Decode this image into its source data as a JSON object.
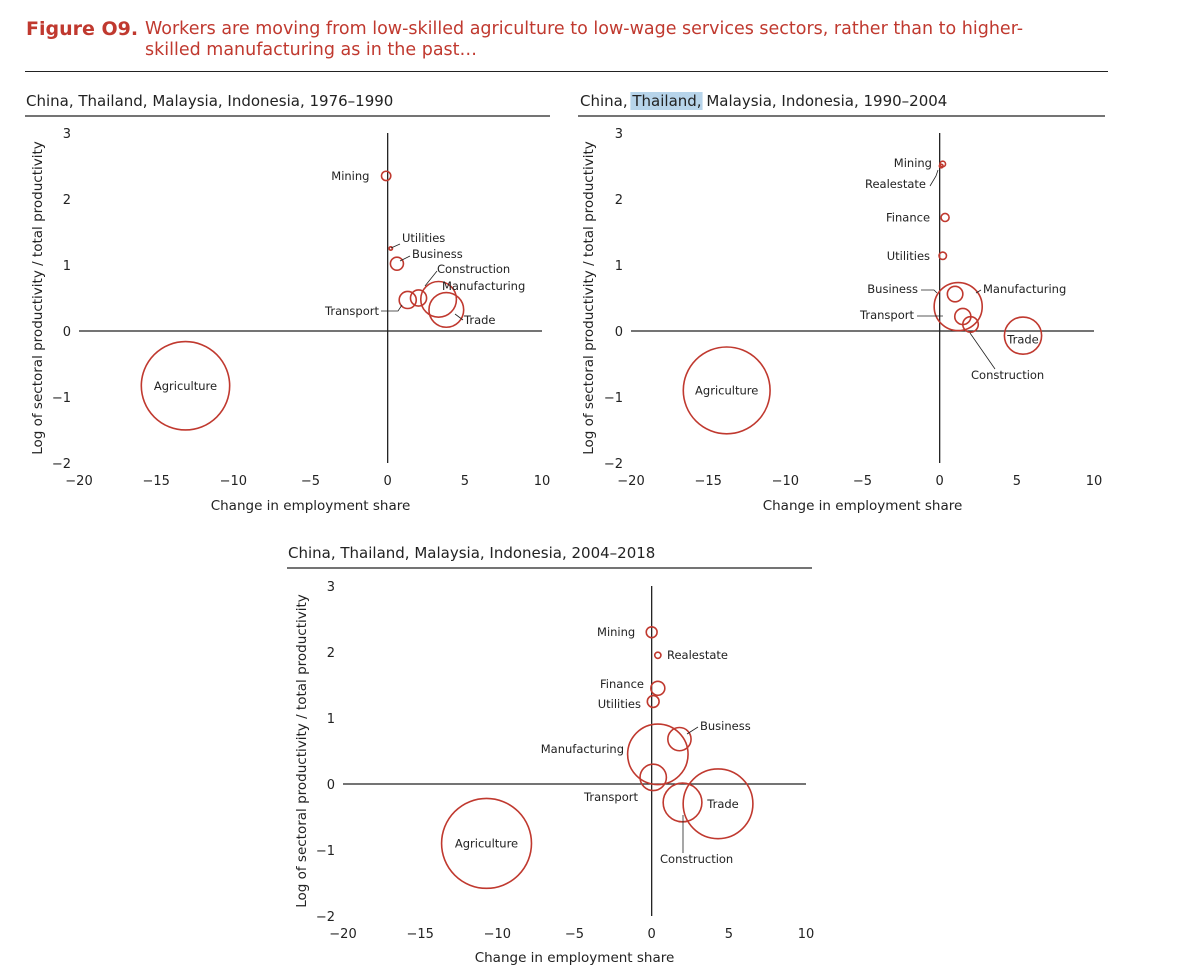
{
  "figure": {
    "number": "Figure O9.",
    "title": "Workers are moving from low-skilled agriculture to low-wage services sectors, rather than to higher-skilled manufacturing as in the past…"
  },
  "chart_data": [
    {
      "type": "scatter",
      "title": "China, Thailand, Malaysia, Indonesia, 1976–1990",
      "title_parts": [
        {
          "text": "China, ",
          "highlight": false
        },
        {
          "text": "Thailand, Malaysia, Indonesia, 1976–1990",
          "highlight": false
        }
      ],
      "xlabel": "Change in employment share",
      "ylabel": "Log of sectoral productivity / total productivity",
      "xlim": [
        -20,
        10
      ],
      "ylim": [
        -2,
        3
      ],
      "xticks": [
        "−20",
        "−15",
        "−10",
        "−5",
        "0",
        "5",
        "10"
      ],
      "yticks": [
        "3",
        "2",
        "1",
        "0",
        "−1",
        "−2"
      ],
      "points": [
        {
          "label": "Mining",
          "x": -0.1,
          "y": 2.35,
          "size": 0.3
        },
        {
          "label": "Utilities",
          "x": 0.2,
          "y": 1.25,
          "size": 0.11
        },
        {
          "label": "Business",
          "x": 0.6,
          "y": 1.02,
          "size": 0.42
        },
        {
          "label": "Construction",
          "x": 2.0,
          "y": 0.5,
          "size": 0.52
        },
        {
          "label": "Transport",
          "x": 1.3,
          "y": 0.47,
          "size": 0.55
        },
        {
          "label": "Manufacturing",
          "x": 3.3,
          "y": 0.48,
          "size": 1.15
        },
        {
          "label": "Trade",
          "x": 3.8,
          "y": 0.32,
          "size": 1.12
        },
        {
          "label": "Agriculture",
          "x": -13.1,
          "y": -0.83,
          "size": 2.85
        }
      ]
    },
    {
      "type": "scatter",
      "title": "China, Thailand, Malaysia, Indonesia, 1990–2004",
      "title_parts": [
        {
          "text": "China, ",
          "highlight": false
        },
        {
          "text": "Thailand,",
          "highlight": true
        },
        {
          "text": " Malaysia, Indonesia, 1990–2004",
          "highlight": false
        }
      ],
      "xlabel": "Change in employment share",
      "ylabel": "Log of sectoral productivity / total productivity",
      "xlim": [
        -20,
        10
      ],
      "ylim": [
        -2,
        3
      ],
      "xticks": [
        "−20",
        "−15",
        "−10",
        "−5",
        "0",
        "5",
        "10"
      ],
      "yticks": [
        "3",
        "2",
        "1",
        "0",
        "−1",
        "−2"
      ],
      "points": [
        {
          "label": "Mining",
          "x": 0.2,
          "y": 2.53,
          "size": 0.18
        },
        {
          "label": "Realestate",
          "x": 0.1,
          "y": 2.5,
          "size": 0.12
        },
        {
          "label": "Finance",
          "x": 0.35,
          "y": 1.72,
          "size": 0.26
        },
        {
          "label": "Utilities",
          "x": 0.2,
          "y": 1.14,
          "size": 0.24
        },
        {
          "label": "Business",
          "x": 1.0,
          "y": 0.56,
          "size": 0.5
        },
        {
          "label": "Manufacturing",
          "x": 1.2,
          "y": 0.37,
          "size": 1.55
        },
        {
          "label": "Transport",
          "x": 1.5,
          "y": 0.22,
          "size": 0.52
        },
        {
          "label": "Construction",
          "x": 2.0,
          "y": 0.1,
          "size": 0.5
        },
        {
          "label": "Trade",
          "x": 5.4,
          "y": -0.07,
          "size": 1.2
        },
        {
          "label": "Agriculture",
          "x": -13.8,
          "y": -0.9,
          "size": 2.8
        }
      ]
    },
    {
      "type": "scatter",
      "title": "China, Thailand, Malaysia, Indonesia, 2004–2018",
      "title_parts": [
        {
          "text": "China, ",
          "highlight": false
        },
        {
          "text": "Thailand, Malaysia, Indonesia, 2004–2018",
          "highlight": false
        }
      ],
      "xlabel": "Change in employment share",
      "ylabel": "Log of sectoral productivity / total productivity",
      "xlim": [
        -20,
        10
      ],
      "ylim": [
        -2,
        3
      ],
      "xticks": [
        "−20",
        "−15",
        "−10",
        "−5",
        "0",
        "5",
        "10"
      ],
      "yticks": [
        "3",
        "2",
        "1",
        "0",
        "−1",
        "−2"
      ],
      "points": [
        {
          "label": "Mining",
          "x": 0.0,
          "y": 2.3,
          "size": 0.35
        },
        {
          "label": "Realestate",
          "x": 0.4,
          "y": 1.95,
          "size": 0.2
        },
        {
          "label": "Finance",
          "x": 0.4,
          "y": 1.45,
          "size": 0.45
        },
        {
          "label": "Utilities",
          "x": 0.1,
          "y": 1.25,
          "size": 0.38
        },
        {
          "label": "Business",
          "x": 1.8,
          "y": 0.68,
          "size": 0.75
        },
        {
          "label": "Manufacturing",
          "x": 0.4,
          "y": 0.45,
          "size": 1.95
        },
        {
          "label": "Transport",
          "x": 0.1,
          "y": 0.1,
          "size": 0.85
        },
        {
          "label": "Construction",
          "x": 2.0,
          "y": -0.28,
          "size": 1.25
        },
        {
          "label": "Trade",
          "x": 4.3,
          "y": -0.3,
          "size": 2.25
        },
        {
          "label": "Agriculture",
          "x": -10.7,
          "y": -0.9,
          "size": 2.9
        }
      ]
    }
  ]
}
